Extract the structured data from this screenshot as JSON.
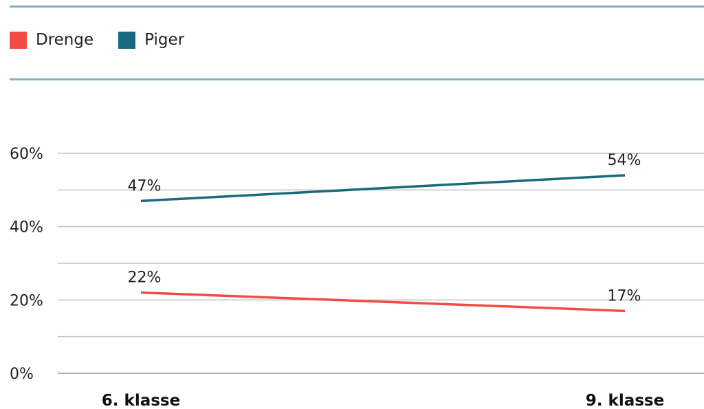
{
  "legend": [
    {
      "name": "Drenge",
      "color": "#f24c44"
    },
    {
      "name": "Piger",
      "color": "#1a6a7e"
    }
  ],
  "chart_data": {
    "type": "line",
    "categories": [
      "6. klasse",
      "9. klasse"
    ],
    "series": [
      {
        "name": "Drenge",
        "color": "#f24c44",
        "values": [
          22,
          17
        ],
        "labels": [
          "22%",
          "17%"
        ]
      },
      {
        "name": "Piger",
        "color": "#1a6a7e",
        "values": [
          47,
          54
        ],
        "labels": [
          "47%",
          "54%"
        ]
      }
    ],
    "yticks": [
      "0%",
      "20%",
      "40%",
      "60%"
    ],
    "ylim": [
      0,
      60
    ],
    "grid": true,
    "legend_position": "top-left"
  }
}
